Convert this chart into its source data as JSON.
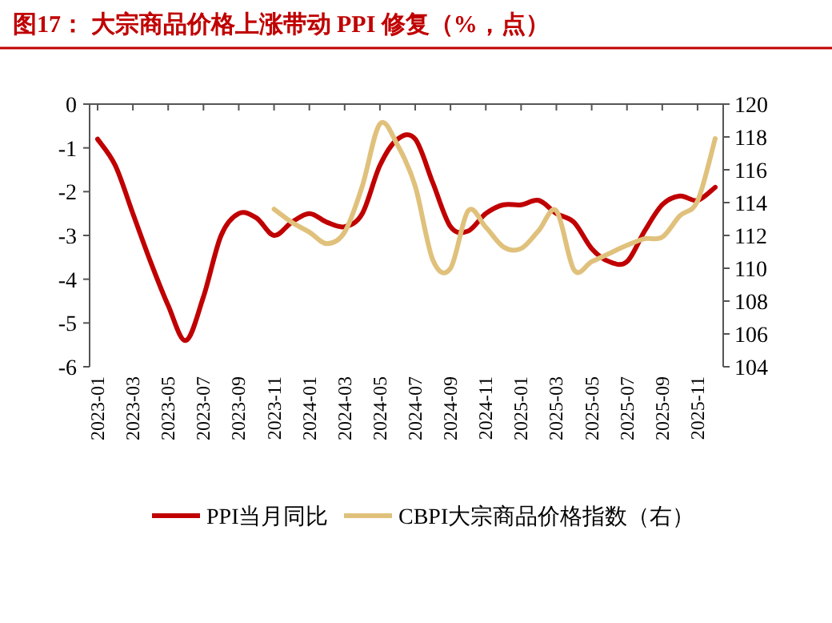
{
  "chart_data": {
    "type": "line",
    "title": "图17：  大宗商品价格上涨带动 PPI 修复（%，点）",
    "categories": [
      "2023-01",
      null,
      "2023-03",
      null,
      "2023-05",
      null,
      "2023-07",
      null,
      "2023-09",
      null,
      "2023-11",
      null,
      "2024-01",
      null,
      "2024-03",
      null,
      "2024-05",
      null,
      "2024-07",
      null,
      "2024-09",
      null,
      "2024-11",
      null,
      "2025-01",
      null,
      "2025-03",
      null,
      "2025-05",
      null,
      "2025-07",
      null,
      "2025-09",
      null,
      "2025-11",
      null
    ],
    "series": [
      {
        "name": "PPI当月同比",
        "color": "#c00000",
        "values": [
          -0.8,
          -1.4,
          -2.5,
          -3.6,
          -4.6,
          -5.4,
          -4.4,
          -3.0,
          -2.5,
          -2.6,
          -3.0,
          -2.7,
          -2.5,
          -2.7,
          -2.8,
          -2.5,
          -1.4,
          -0.8,
          -0.8,
          -1.8,
          -2.8,
          -2.9,
          -2.5,
          -2.3,
          -2.3,
          -2.2,
          -2.5,
          -2.7,
          -3.3,
          -3.6,
          -3.6,
          -2.9,
          -2.3,
          -2.1,
          -2.2,
          -1.9
        ]
      },
      {
        "name": "CBPI大宗商品价格指数（右）",
        "color": "#e0c17c",
        "axis": "y2",
        "values": [
          null,
          null,
          null,
          null,
          null,
          null,
          null,
          null,
          null,
          null,
          113.6,
          112.8,
          112.2,
          111.5,
          112.2,
          115,
          118.8,
          117.5,
          115,
          110.5,
          110,
          113.5,
          112.5,
          111.3,
          111.2,
          112.3,
          113.5,
          109.9,
          110.4,
          110.9,
          111.4,
          111.8,
          111.9,
          113.2,
          114.1,
          117.9
        ]
      }
    ],
    "ylim": [
      -6,
      0
    ],
    "yticks": [
      0,
      -1,
      -2,
      -3,
      -4,
      -5,
      -6
    ],
    "y2lim": [
      104,
      120
    ],
    "y2ticks": [
      104,
      106,
      108,
      110,
      112,
      114,
      116,
      118,
      120
    ],
    "legend": "bottom",
    "grid": false
  }
}
